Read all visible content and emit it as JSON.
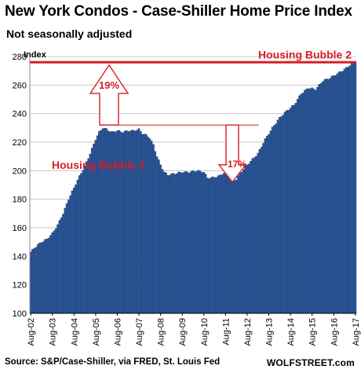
{
  "title": "New York Condos - Case-Shiller Home Price Index",
  "subtitle": "Not seasonally adjusted",
  "source": "Source: S&P/Case-Shiller, via FRED,  St. Louis Fed",
  "brand": "WOLFSTREET.com",
  "chart_data": {
    "type": "bar",
    "ylabel": "Index",
    "ylim": [
      100,
      280
    ],
    "yticks": [
      100,
      120,
      140,
      160,
      180,
      200,
      220,
      240,
      260,
      280
    ],
    "grid": true,
    "x_start": "Aug-02",
    "x_end": "Aug-17",
    "frequency": "monthly",
    "x_tick_labels": [
      "Aug-02",
      "Aug-03",
      "Aug-04",
      "Aug-05",
      "Aug-06",
      "Aug-07",
      "Aug-08",
      "Aug-09",
      "Aug-10",
      "Aug-11",
      "Aug-12",
      "Aug-13",
      "Aug-14",
      "Aug-15",
      "Aug-16",
      "Aug-17"
    ],
    "anchors": [
      [
        0,
        143
      ],
      [
        3,
        147
      ],
      [
        6,
        150
      ],
      [
        9,
        152
      ],
      [
        12,
        156
      ],
      [
        15,
        162
      ],
      [
        18,
        170
      ],
      [
        21,
        180
      ],
      [
        24,
        188
      ],
      [
        27,
        196
      ],
      [
        30,
        203
      ],
      [
        33,
        212
      ],
      [
        36,
        222
      ],
      [
        38,
        227
      ],
      [
        40,
        230
      ],
      [
        42,
        229
      ],
      [
        45,
        227
      ],
      [
        48,
        228
      ],
      [
        51,
        227
      ],
      [
        54,
        228
      ],
      [
        57,
        228
      ],
      [
        60,
        229
      ],
      [
        62,
        226
      ],
      [
        64,
        225
      ],
      [
        66,
        223
      ],
      [
        68,
        218
      ],
      [
        70,
        210
      ],
      [
        72,
        204
      ],
      [
        74,
        199
      ],
      [
        76,
        197
      ],
      [
        80,
        198
      ],
      [
        84,
        199
      ],
      [
        88,
        199
      ],
      [
        92,
        200
      ],
      [
        96,
        199
      ],
      [
        98,
        195
      ],
      [
        100,
        195
      ],
      [
        104,
        196
      ],
      [
        108,
        199
      ],
      [
        110,
        198
      ],
      [
        112,
        193
      ],
      [
        114,
        194
      ],
      [
        116,
        198
      ],
      [
        120,
        204
      ],
      [
        126,
        212
      ],
      [
        130,
        222
      ],
      [
        134,
        230
      ],
      [
        138,
        237
      ],
      [
        142,
        242
      ],
      [
        146,
        246
      ],
      [
        150,
        254
      ],
      [
        154,
        258
      ],
      [
        158,
        257
      ],
      [
        162,
        263
      ],
      [
        166,
        265
      ],
      [
        170,
        268
      ],
      [
        174,
        271
      ],
      [
        178,
        275
      ],
      [
        180,
        276
      ]
    ],
    "annotations": {
      "bubble1_label": "Housing Bubble 1",
      "bubble2_label": "Housing Bubble 2",
      "bubble2_level": 276,
      "bubble1_peak_level": 232,
      "rise_label": "19%",
      "drop_label": "-17%",
      "rise_arrow_top": 274,
      "drop_arrow_bottom": 192
    }
  }
}
